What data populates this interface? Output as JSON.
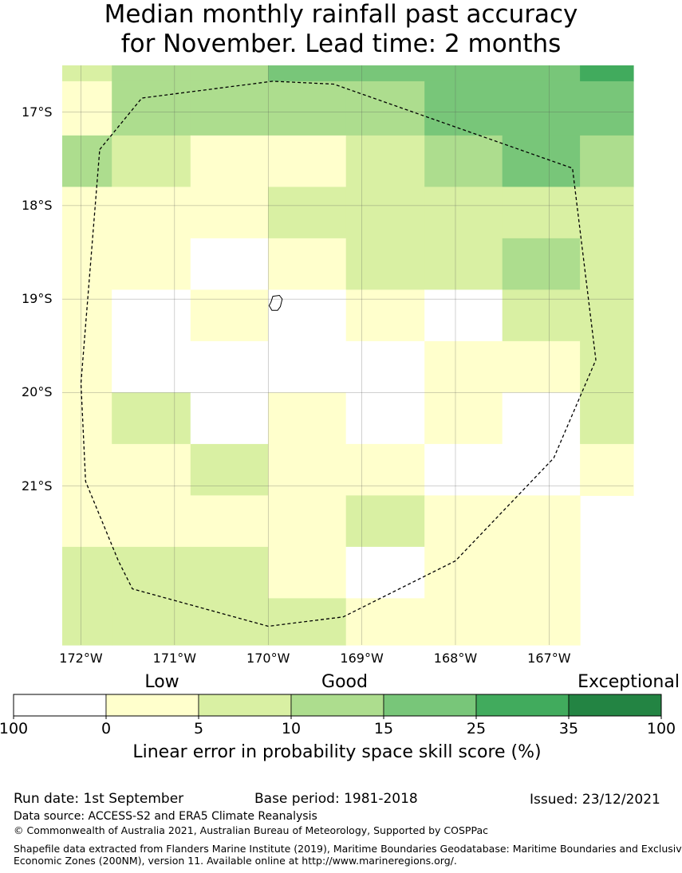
{
  "title": {
    "line1": "Median monthly rainfall past accuracy",
    "line2": "for November. Lead time: 2 months"
  },
  "map": {
    "lon_labels": [
      "172°W",
      "171°W",
      "170°W",
      "169°W",
      "168°W",
      "167°W"
    ],
    "lat_labels": [
      "17°S",
      "18°S",
      "19°S",
      "20°S",
      "21°S"
    ],
    "grid_lons": [
      -172,
      -171,
      -170,
      -169,
      -168,
      -167
    ],
    "grid_lats": [
      -17,
      -18,
      -19,
      -20,
      -21
    ],
    "extent": {
      "lon_min": -172.2,
      "lon_max": -166.1,
      "lat_min": -22.7,
      "lat_max": -16.5
    },
    "cell_columns_lon": [
      -172.2,
      -171.67,
      -170.83,
      -170.0,
      -169.17,
      -168.33,
      -167.5,
      -166.67,
      -166.1
    ],
    "cell_rows_lat": [
      -16.5,
      -16.67,
      -17.25,
      -17.8,
      -18.35,
      -18.9,
      -19.45,
      -20.0,
      -20.55,
      -21.1,
      -21.65,
      -22.2,
      -22.7
    ],
    "cell_classes": [
      [
        1,
        2,
        2,
        3,
        3,
        3,
        3,
        4
      ],
      [
        0,
        2,
        2,
        2,
        2,
        3,
        3,
        3
      ],
      [
        2,
        1,
        0,
        0,
        1,
        2,
        3,
        2
      ],
      [
        0,
        0,
        0,
        1,
        1,
        1,
        1,
        1
      ],
      [
        0,
        0,
        -1,
        0,
        1,
        1,
        2,
        1
      ],
      [
        0,
        -1,
        0,
        -1,
        0,
        -1,
        1,
        1
      ],
      [
        0,
        -1,
        -1,
        -1,
        -1,
        0,
        0,
        1
      ],
      [
        0,
        1,
        -1,
        0,
        -1,
        0,
        -1,
        1
      ],
      [
        0,
        0,
        1,
        0,
        0,
        -1,
        -1,
        0
      ],
      [
        0,
        0,
        0,
        0,
        1,
        0,
        0,
        null
      ],
      [
        1,
        1,
        1,
        0,
        -1,
        0,
        0,
        null
      ],
      [
        1,
        1,
        1,
        1,
        0,
        0,
        0,
        null
      ]
    ],
    "eez_boundary": [
      [
        -171.8,
        -17.4
      ],
      [
        -171.35,
        -16.85
      ],
      [
        -169.95,
        -16.67
      ],
      [
        -169.3,
        -16.7
      ],
      [
        -166.75,
        -17.6
      ],
      [
        -166.5,
        -19.65
      ],
      [
        -166.95,
        -20.7
      ],
      [
        -168.0,
        -21.8
      ],
      [
        -169.2,
        -22.4
      ],
      [
        -170.0,
        -22.5
      ],
      [
        -171.45,
        -22.1
      ],
      [
        -171.6,
        -21.8
      ],
      [
        -171.95,
        -20.95
      ],
      [
        -172.0,
        -19.9
      ],
      [
        -171.8,
        -17.4
      ]
    ],
    "island_outline": [
      [
        -169.95,
        -18.97
      ],
      [
        -169.88,
        -18.96
      ],
      [
        -169.85,
        -19.0
      ],
      [
        -169.87,
        -19.08
      ],
      [
        -169.9,
        -19.12
      ],
      [
        -169.96,
        -19.12
      ],
      [
        -169.99,
        -19.07
      ],
      [
        -169.97,
        -19.03
      ],
      [
        -169.95,
        -18.97
      ]
    ]
  },
  "legend": {
    "categories": [
      {
        "label": "Low",
        "x_center": 203
      },
      {
        "label": "Good",
        "x_center": 432
      },
      {
        "label": "Exceptional",
        "x_center": 788
      }
    ],
    "colors": [
      "#ffffff",
      "#ffffcc",
      "#d9f0a3",
      "#addd8e",
      "#78c679",
      "#41ab5d",
      "#238443"
    ],
    "tick_labels": [
      "100",
      "0",
      "5",
      "10",
      "15",
      "25",
      "35",
      "100"
    ],
    "caption": "Linear error in probability space skill score (%)"
  },
  "footer": {
    "run_date": "Run date: 1st September",
    "base_period": "Base period: 1981-2018",
    "issued": "Issued: 23/12/2021",
    "data_source": "Data source: ACCESS-S2 and ERA5 Climate Reanalysis",
    "copyright": "© Commonwealth of Australia 2021, Australian Bureau of Meteorology, Supported by COSPPac",
    "shapefile_line1": "Shapefile data extracted from Flanders Marine Institute (2019), Maritime Boundaries Geodatabase: Maritime Boundaries and Exclusive",
    "shapefile_line2": "Economic Zones (200NM), version 11. Available online at http://www.marineregions.org/."
  }
}
